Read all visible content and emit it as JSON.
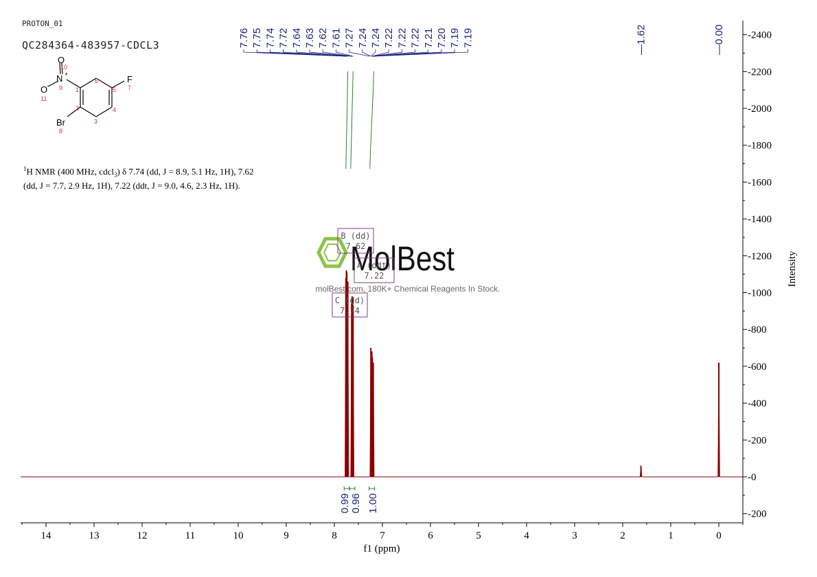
{
  "header": {
    "experiment": "PROTON_01",
    "sample": "QC284364-483957-CDCL3"
  },
  "structure": {
    "labels": [
      "O",
      "N",
      "+",
      "O",
      "-",
      "F",
      "Br"
    ],
    "numbers": [
      "10",
      "9",
      "11",
      "1",
      "6",
      "5",
      "7",
      "2",
      "4",
      "3",
      "8"
    ]
  },
  "nmr_description": {
    "nucleus_sup": "1",
    "text": "H NMR (400 MHz, cdcl",
    "sub": "3",
    "rest": ") δ 7.74 (dd, J = 8.9, 5.1 Hz, 1H), 7.62 (dd, J = 7.7, 2.9 Hz, 1H), 7.22 (ddt, J = 9.0, 4.6, 2.3 Hz, 1H)."
  },
  "watermark": {
    "brand": "MolBest",
    "tagline": "molBest.com, 180K+ Chemical Reagents In Stock."
  },
  "colors": {
    "spectrum": "#8b0000",
    "peak_label": "#1a237e",
    "integral": "#2e7d32",
    "multiplet_box": "#7b3f7b",
    "watermark_green": "#8bc34a"
  },
  "chart_data": {
    "type": "line",
    "xlabel": "f1 (ppm)",
    "ylabel": "Intensity",
    "xlim": [
      14.5,
      -0.5
    ],
    "ylim": [
      -250,
      2500
    ],
    "x_ticks": [
      14,
      13,
      12,
      11,
      10,
      9,
      8,
      7,
      6,
      5,
      4,
      3,
      2,
      1,
      0
    ],
    "y_ticks": [
      -200,
      0,
      200,
      400,
      600,
      800,
      1000,
      1200,
      1400,
      1600,
      1800,
      2000,
      2200,
      2400
    ],
    "peak_labels_group": [
      "7.76",
      "7.75",
      "7.74",
      "7.72",
      "7.64",
      "7.63",
      "7.62",
      "7.61",
      "7.27",
      "7.24",
      "7.24",
      "7.22",
      "7.22",
      "7.22",
      "7.21",
      "7.20",
      "7.19",
      "7.19"
    ],
    "peak_labels_single": [
      "1.62",
      "0.00"
    ],
    "peaks": [
      {
        "ppm": 7.76,
        "intensity": 1080
      },
      {
        "ppm": 7.75,
        "intensity": 1120
      },
      {
        "ppm": 7.74,
        "intensity": 1110
      },
      {
        "ppm": 7.72,
        "intensity": 1060
      },
      {
        "ppm": 7.64,
        "intensity": 940
      },
      {
        "ppm": 7.63,
        "intensity": 980
      },
      {
        "ppm": 7.62,
        "intensity": 970
      },
      {
        "ppm": 7.61,
        "intensity": 930
      },
      {
        "ppm": 7.24,
        "intensity": 700
      },
      {
        "ppm": 7.22,
        "intensity": 680
      },
      {
        "ppm": 7.21,
        "intensity": 650
      },
      {
        "ppm": 7.19,
        "intensity": 620
      },
      {
        "ppm": 1.62,
        "intensity": 60
      },
      {
        "ppm": 0.0,
        "intensity": 620
      }
    ],
    "integrals": [
      {
        "ppm": 7.74,
        "value": "0.99"
      },
      {
        "ppm": 7.63,
        "value": "0.96"
      },
      {
        "ppm": 7.22,
        "value": "1.00"
      }
    ],
    "multiplets": [
      {
        "label": "B (dd)",
        "shift": "7.62"
      },
      {
        "label": "A (ddt)",
        "shift": "7.22"
      },
      {
        "label": "C (dd)",
        "shift": "7.74"
      }
    ]
  }
}
